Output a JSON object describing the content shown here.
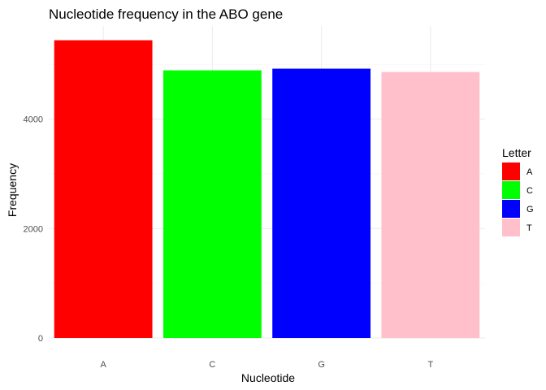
{
  "chart_data": {
    "type": "bar",
    "title": "Nucleotide frequency in the ABO gene",
    "xlabel": "Nucleotide",
    "ylabel": "Frequency",
    "categories": [
      "A",
      "C",
      "G",
      "T"
    ],
    "values": [
      5440,
      4890,
      4920,
      4860
    ],
    "colors": [
      "#ff0000",
      "#00ff00",
      "#0000ff",
      "#ffc0cb"
    ],
    "ylim": [
      0,
      5700
    ],
    "yticks": [
      0,
      2000,
      4000
    ],
    "grid": true,
    "legend": {
      "title": "Letter",
      "position": "right",
      "items": [
        "A",
        "C",
        "G",
        "T"
      ]
    }
  }
}
